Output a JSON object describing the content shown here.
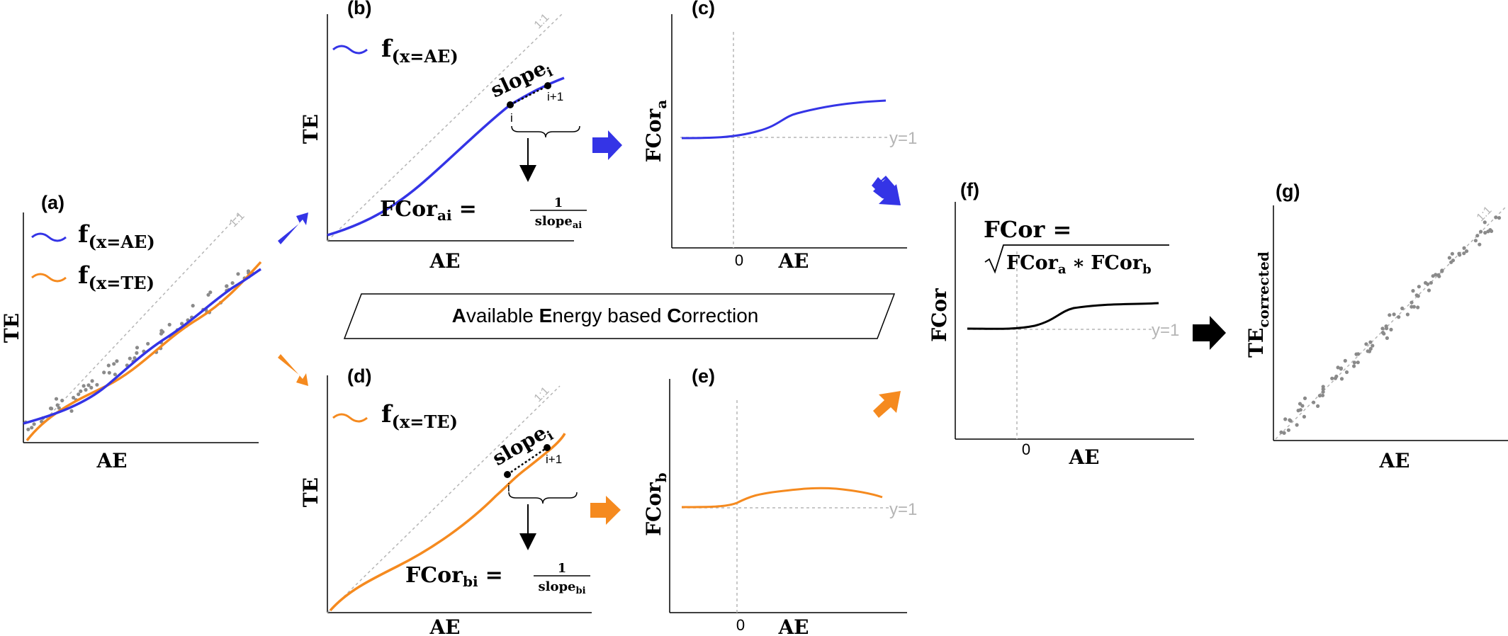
{
  "panels": {
    "a": {
      "label": "(a)",
      "xlabel": "AE",
      "ylabel": "TE",
      "identity": "1:1",
      "legend": [
        {
          "text": "f",
          "sub": "(x=AE)",
          "color": "#3434e6"
        },
        {
          "text": "f",
          "sub": "(x=TE)",
          "color": "#f58a1f"
        }
      ]
    },
    "b": {
      "label": "(b)",
      "xlabel": "AE",
      "ylabel": "TE",
      "identity": "1:1",
      "legend": {
        "text": "f",
        "sub": "(x=AE)",
        "color": "#3434e6"
      },
      "slope": "slope",
      "slope_sub": "i",
      "pt_i": "i",
      "pt_i1": "i+1",
      "formula_lhs": "FCor",
      "formula_lhs_sub": "ai",
      "eq": "=",
      "num": "1",
      "den": "slope",
      "den_sub": "ai"
    },
    "c": {
      "label": "(c)",
      "xlabel": "AE",
      "ylabel": "FCor",
      "ylabel_sub": "a",
      "zero": "0",
      "yref": "y=1"
    },
    "d": {
      "label": "(d)",
      "xlabel": "AE",
      "ylabel": "TE",
      "identity": "1:1",
      "legend": {
        "text": "f",
        "sub": "(x=TE)",
        "color": "#f58a1f"
      },
      "slope": "slope",
      "slope_sub": "i",
      "pt_i": "i",
      "pt_i1": "i+1",
      "formula_lhs": "FCor",
      "formula_lhs_sub": "bi",
      "eq": "=",
      "num": "1",
      "den": "slope",
      "den_sub": "bi"
    },
    "e": {
      "label": "(e)",
      "xlabel": "AE",
      "ylabel": "FCor",
      "ylabel_sub": "b",
      "zero": "0",
      "yref": "y=1"
    },
    "f": {
      "label": "(f)",
      "xlabel": "AE",
      "ylabel": "FCor",
      "zero": "0",
      "yref": "y=1",
      "formula_line1": "FCor =",
      "formula_sqrt_a": "FCor",
      "formula_sub_a": "a",
      "formula_times": "∗",
      "formula_sqrt_b": "FCor",
      "formula_sub_b": "b"
    },
    "g": {
      "label": "(g)",
      "xlabel": "AE",
      "ylabel": "TE",
      "ylabel_sub": "corrected",
      "identity": "1:1"
    }
  },
  "banner": {
    "A": "A",
    "rest1": "vailable ",
    "E": "E",
    "rest2": "nergy based ",
    "C": "C",
    "rest3": "orrection"
  },
  "colors": {
    "blue": "#3434e6",
    "orange": "#f58a1f",
    "black": "#000000",
    "grey": "#b5b5b5",
    "dots": "#8a8a8a"
  }
}
